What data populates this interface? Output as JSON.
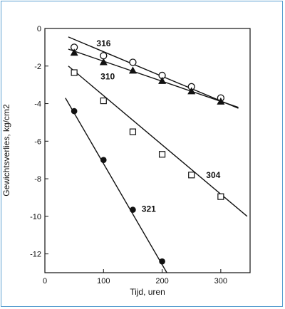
{
  "chart_data": {
    "type": "scatter",
    "title": "",
    "xlabel": "Tijd, uren",
    "ylabel": "Gewichtsverlies, kg/cm2",
    "xlim": [
      0,
      350
    ],
    "ylim": [
      -13,
      0
    ],
    "xticks": [
      0,
      100,
      200,
      300
    ],
    "yticks": [
      0,
      -2,
      -4,
      -6,
      -8,
      -10,
      -12
    ],
    "grid": false,
    "series": [
      {
        "name": "316",
        "marker": "circle-open",
        "x": [
          50,
          100,
          150,
          200,
          250,
          300
        ],
        "y": [
          -1.0,
          -1.45,
          -1.8,
          -2.5,
          -3.1,
          -3.7
        ],
        "fit": [
          [
            40,
            -0.45
          ],
          [
            330,
            -4.25
          ]
        ]
      },
      {
        "name": "310",
        "marker": "triangle-filled",
        "x": [
          50,
          100,
          150,
          200,
          250,
          300
        ],
        "y": [
          -1.3,
          -1.8,
          -2.25,
          -2.8,
          -3.35,
          -3.9
        ],
        "fit": [
          [
            40,
            -1.1
          ],
          [
            330,
            -4.2
          ]
        ]
      },
      {
        "name": "304",
        "marker": "square-open",
        "x": [
          50,
          100,
          150,
          200,
          250,
          300
        ],
        "y": [
          -2.35,
          -3.85,
          -5.5,
          -6.7,
          -7.8,
          -8.95
        ],
        "fit": [
          [
            40,
            -2.0
          ],
          [
            345,
            -10.0
          ]
        ]
      },
      {
        "name": "321",
        "marker": "circle-filled",
        "x": [
          50,
          100,
          150,
          200
        ],
        "y": [
          -4.4,
          -7.0,
          -9.65,
          -12.4
        ],
        "fit": [
          [
            35,
            -3.7
          ],
          [
            208,
            -13.0
          ]
        ]
      }
    ],
    "labels": [
      {
        "text": "316",
        "x": 88,
        "y": -0.8
      },
      {
        "text": "310",
        "x": 95,
        "y": -2.55
      },
      {
        "text": "304",
        "x": 275,
        "y": -7.8
      },
      {
        "text": "321",
        "x": 165,
        "y": -9.6
      }
    ]
  }
}
